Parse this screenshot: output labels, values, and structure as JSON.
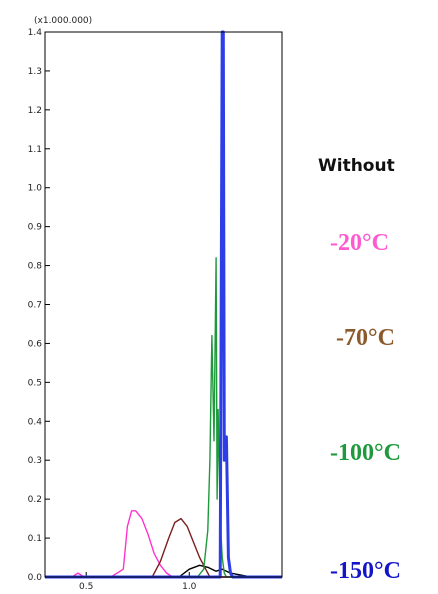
{
  "chart_data": {
    "type": "line",
    "title": "",
    "xlabel": "",
    "ylabel": "",
    "y_multiplier_label": "(x1.000.000)",
    "xlim": [
      0.3,
      1.45
    ],
    "ylim": [
      0,
      1.4
    ],
    "x_ticks": [
      0.5,
      1.0
    ],
    "x_tick_labels": [
      "0.5",
      "1.0"
    ],
    "y_ticks": [
      0.0,
      0.1,
      0.2,
      0.3,
      0.4,
      0.5,
      0.6,
      0.7,
      0.8,
      0.9,
      1.0,
      1.1,
      1.2,
      1.3,
      1.4
    ],
    "y_tick_labels": [
      "0.0",
      "0.1",
      "0.2",
      "0.3",
      "0.4",
      "0.5",
      "0.6",
      "0.7",
      "0.8",
      "0.9",
      "1.0",
      "1.1",
      "1.2",
      "1.3",
      "1.4"
    ],
    "grid": false,
    "legend_position": "right",
    "series": [
      {
        "name": "Without",
        "color": "#000000",
        "x": [
          0.3,
          0.95,
          1.0,
          1.05,
          1.09,
          1.13,
          1.16,
          1.2,
          1.25,
          1.3,
          1.45
        ],
        "y": [
          0.0,
          0.0,
          0.02,
          0.03,
          0.025,
          0.015,
          0.02,
          0.01,
          0.005,
          0.0,
          0.0
        ]
      },
      {
        "name": "-20°C",
        "color": "#ff33cc",
        "x": [
          0.3,
          0.43,
          0.46,
          0.49,
          0.62,
          0.68,
          0.7,
          0.72,
          0.74,
          0.77,
          0.8,
          0.83,
          0.86,
          0.89,
          0.92,
          1.45
        ],
        "y": [
          0.0,
          0.0,
          0.01,
          0.0,
          0.0,
          0.02,
          0.13,
          0.17,
          0.17,
          0.15,
          0.11,
          0.06,
          0.03,
          0.01,
          0.0,
          0.0
        ]
      },
      {
        "name": "-70°C",
        "color": "#7a2020",
        "x": [
          0.3,
          0.82,
          0.86,
          0.9,
          0.93,
          0.96,
          0.99,
          1.02,
          1.05,
          1.08,
          1.1,
          1.45
        ],
        "y": [
          0.0,
          0.0,
          0.04,
          0.1,
          0.14,
          0.15,
          0.13,
          0.09,
          0.05,
          0.02,
          0.0,
          0.0
        ]
      },
      {
        "name": "-100°C",
        "color": "#1e9a3c",
        "x": [
          0.3,
          1.04,
          1.07,
          1.09,
          1.1,
          1.11,
          1.12,
          1.13,
          1.135,
          1.14,
          1.15,
          1.16,
          1.17,
          1.18,
          1.45
        ],
        "y": [
          0.0,
          0.0,
          0.02,
          0.12,
          0.3,
          0.62,
          0.35,
          0.82,
          0.2,
          0.43,
          0.15,
          0.05,
          0.01,
          0.0,
          0.0
        ]
      },
      {
        "name": "-150°C",
        "color": "#2d3ee6",
        "x": [
          0.3,
          1.15,
          1.16,
          1.165,
          1.17,
          1.18,
          1.19,
          1.2,
          1.21,
          1.45
        ],
        "y": [
          0.0,
          0.0,
          1.4,
          1.4,
          0.3,
          0.36,
          0.05,
          0.01,
          0.0,
          0.0
        ]
      }
    ]
  }
}
